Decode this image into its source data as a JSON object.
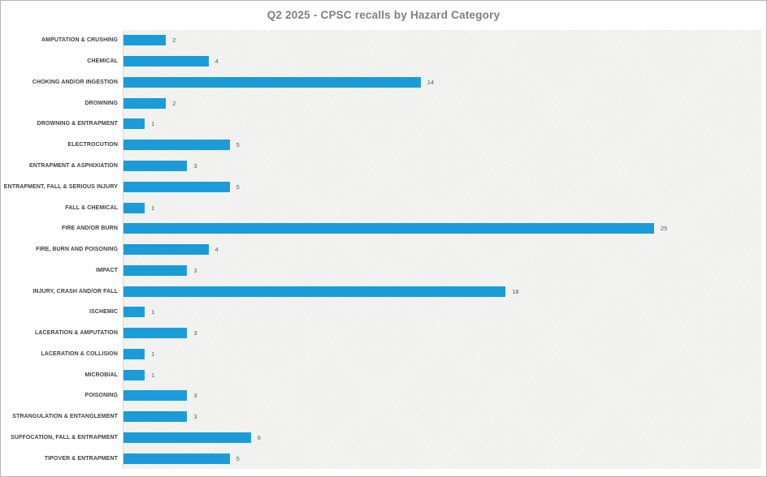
{
  "header": {
    "title": "Q2 2025 - CPSC recalls by Hazard Category"
  },
  "chart_data": {
    "type": "bar",
    "orientation": "horizontal",
    "title": "Q2 2025 - CPSC recalls by Hazard Category",
    "xlabel": "",
    "ylabel": "",
    "xlim": [
      0,
      30
    ],
    "grid": false,
    "legend": false,
    "data_labels": true,
    "categories": [
      "AMPUTATION & CRUSHING",
      "CHEMICAL",
      "CHOKING AND/OR INGESTION",
      "DROWNING",
      "DROWNING & ENTRAPMENT",
      "ELECTROCUTION",
      "ENTRAPMENT & ASPHIXIATION",
      "ENTRAPMENT, FALL & SERIOUS INJURY",
      "FALL & CHEMICAL",
      "FIRE AND/OR BURN",
      "FIRE, BURN AND POISONING",
      "IMPACT",
      "INJURY, CRASH AND/OR FALL",
      "ISCHEMIC",
      "LACERATION & AMPUTATION",
      "LACERATION & COLLISION",
      "MICROBIAL",
      "POISONING",
      "STRANGULATION & ENTANGLEMENT",
      "SUFFOCATION, FALL & ENTRAPMENT",
      "TIPOVER & ENTRAPMENT"
    ],
    "values": [
      2,
      4,
      14,
      2,
      1,
      5,
      3,
      5,
      1,
      25,
      4,
      3,
      18,
      1,
      3,
      1,
      1,
      3,
      3,
      6,
      5
    ],
    "colors": {
      "bar": "#1b9cd8",
      "title_text": "#7f7f7f",
      "category_text": "#404040",
      "value_text": "#595959",
      "plot_background": "#f6f6f4",
      "border": "#b5b5b5"
    }
  }
}
